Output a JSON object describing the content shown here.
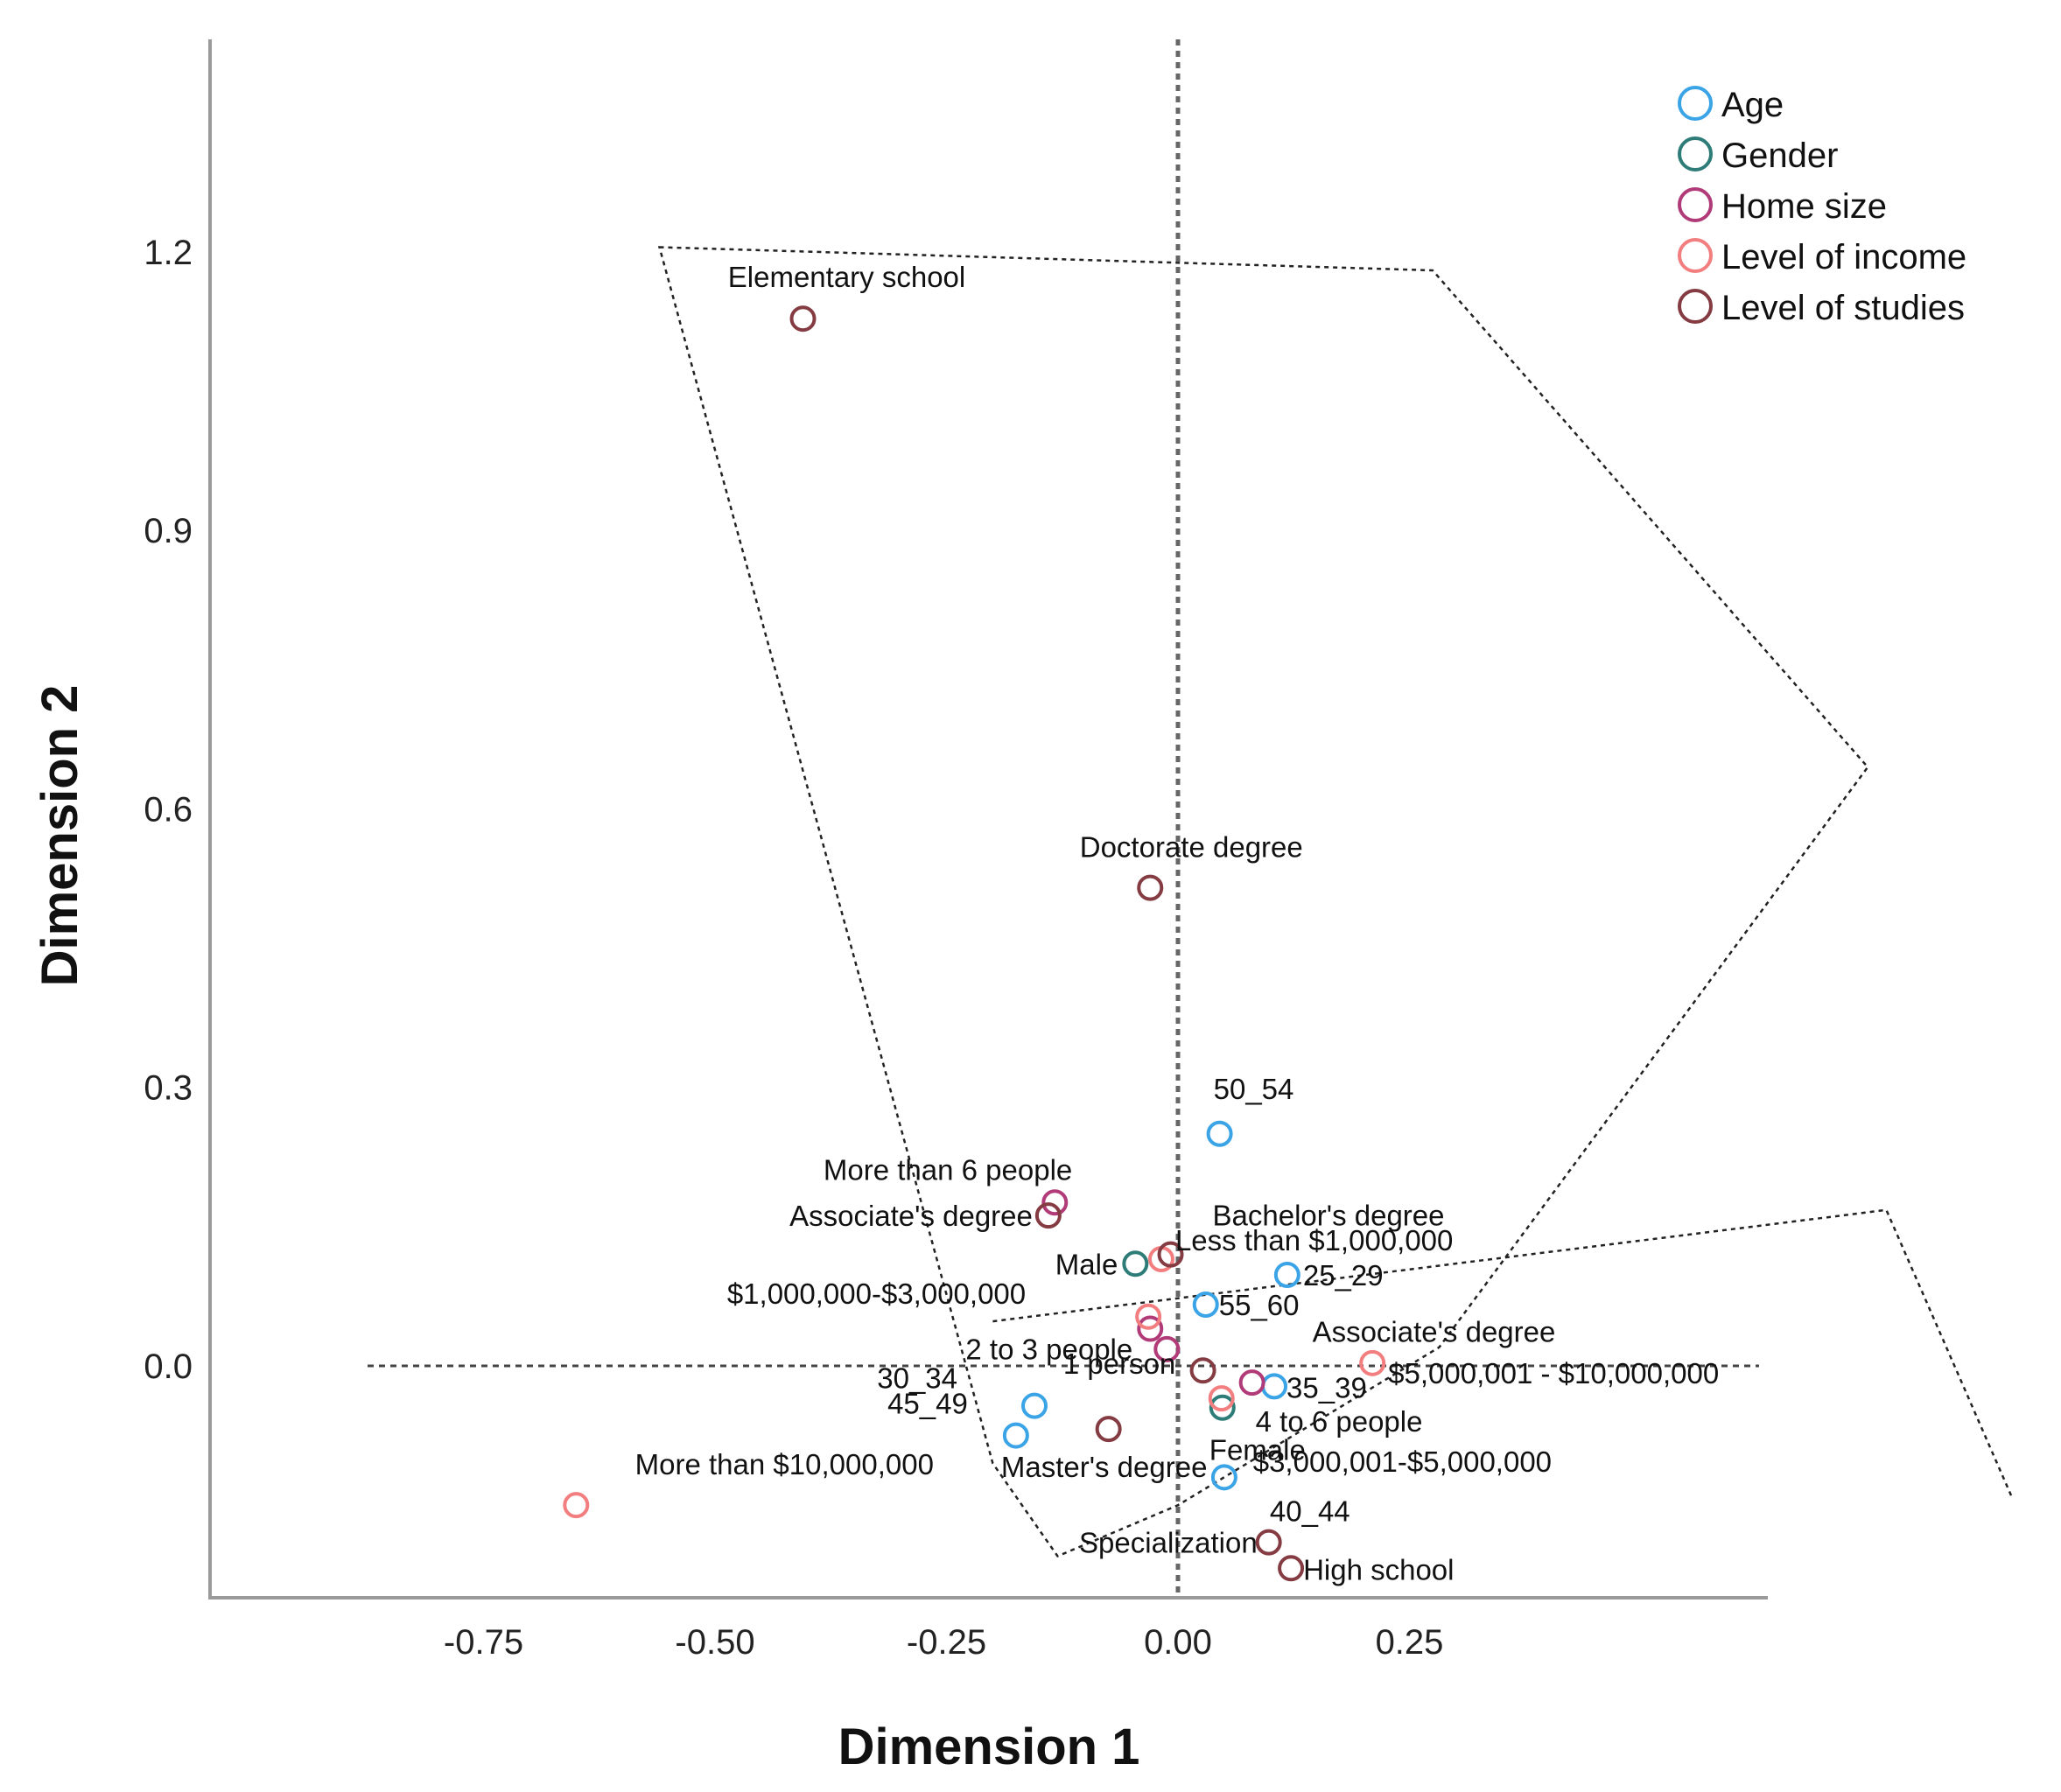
{
  "chart_data": {
    "type": "scatter",
    "title": "",
    "xlabel": "Dimension 1",
    "ylabel": "Dimension 2",
    "xlim": [
      -1.07,
      0.65
    ],
    "ylim": [
      -0.245,
      1.42
    ],
    "x_ticks": [
      {
        "value": -0.75,
        "label": "-0.75"
      },
      {
        "value": -0.5,
        "label": "-0.50"
      },
      {
        "value": -0.25,
        "label": "-0.25"
      },
      {
        "value": 0.0,
        "label": "0.00"
      },
      {
        "value": 0.25,
        "label": "0.25"
      }
    ],
    "y_ticks": [
      {
        "value": 0.0,
        "label": "0.0"
      },
      {
        "value": 0.3,
        "label": "0.3"
      },
      {
        "value": 0.6,
        "label": "0.6"
      },
      {
        "value": 0.9,
        "label": "0.9"
      },
      {
        "value": 1.2,
        "label": "1.2"
      }
    ],
    "grid": false,
    "legend_position": "top-right",
    "reference_lines": {
      "x": 0,
      "y": 0,
      "style": "dashed"
    },
    "colors": {
      "Age": "#3aa4e6",
      "Gender": "#2e7c78",
      "Home size": "#b03b78",
      "Level of income": "#f27e80",
      "Level of studies": "#843b42"
    },
    "series": [
      {
        "name": "Age",
        "points": [
          {
            "label": "50_54",
            "x": 0.045,
            "y": 0.25
          },
          {
            "label": "25_29",
            "x": 0.118,
            "y": 0.098
          },
          {
            "label": "55_60",
            "x": 0.03,
            "y": 0.066
          },
          {
            "label": "35_39",
            "x": 0.104,
            "y": -0.022
          },
          {
            "label": "30_34",
            "x": -0.155,
            "y": -0.043
          },
          {
            "label": "45_49",
            "x": -0.175,
            "y": -0.075
          },
          {
            "label": "40_44",
            "x": 0.05,
            "y": -0.12
          }
        ]
      },
      {
        "name": "Gender",
        "points": [
          {
            "label": "Male",
            "x": -0.046,
            "y": 0.11
          },
          {
            "label": "Female",
            "x": 0.048,
            "y": -0.045
          }
        ]
      },
      {
        "name": "Home size",
        "points": [
          {
            "label": "More than 6 people",
            "x": -0.133,
            "y": 0.176
          },
          {
            "label": "2 to 3 people",
            "x": -0.03,
            "y": 0.04
          },
          {
            "label": "1 person",
            "x": -0.012,
            "y": 0.018
          },
          {
            "label": "4 to 6 people",
            "x": 0.08,
            "y": -0.018
          }
        ]
      },
      {
        "name": "Level of income",
        "points": [
          {
            "label": "Less than $1,000,000",
            "x": -0.018,
            "y": 0.115
          },
          {
            "label": "$1,000,000-$3,000,000",
            "x": -0.032,
            "y": 0.053
          },
          {
            "label": "$5,000,001 - $10,000,000",
            "x": 0.21,
            "y": 0.003
          },
          {
            "label": "$3,000,001-$5,000,000",
            "x": 0.047,
            "y": -0.035
          },
          {
            "label": "More than $10,000,000",
            "x": -0.65,
            "y": -0.15
          }
        ]
      },
      {
        "name": "Level of studies",
        "points": [
          {
            "label": "Elementary school",
            "x": -0.405,
            "y": 1.128
          },
          {
            "label": "Doctorate degree",
            "x": -0.03,
            "y": 0.515
          },
          {
            "label": "Associate's degree",
            "x": -0.14,
            "y": 0.162
          },
          {
            "label": "Bachelor's degree",
            "x": -0.008,
            "y": 0.12
          },
          {
            "label": "Associate's degree",
            "x": 0.027,
            "y": -0.005
          },
          {
            "label": "Master's degree",
            "x": -0.075,
            "y": -0.068
          },
          {
            "label": "Specialization",
            "x": 0.098,
            "y": -0.19
          },
          {
            "label": "High school",
            "x": 0.122,
            "y": -0.218
          }
        ]
      }
    ]
  }
}
